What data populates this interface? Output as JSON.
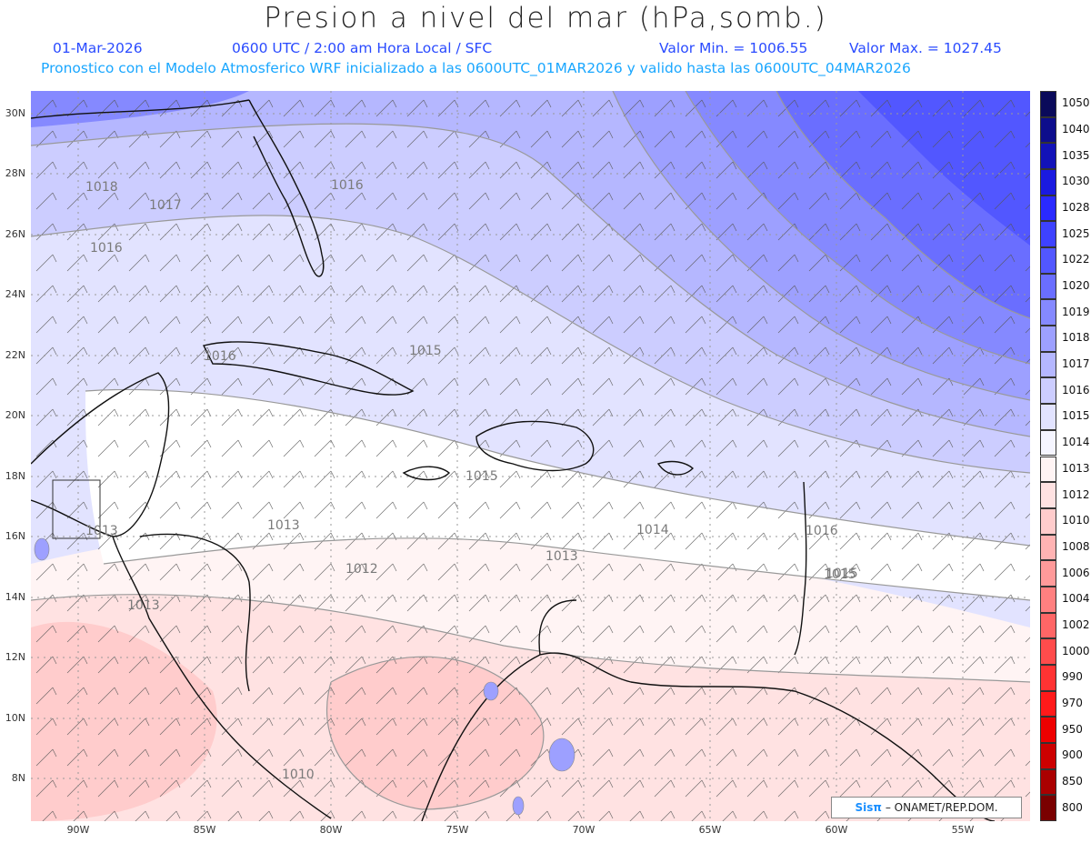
{
  "header": {
    "title": "Presion a nivel del mar (hPa,somb.)",
    "date": "01-Mar-2026",
    "time": "0600 UTC / 2:00 am Hora Local / SFC",
    "min_value": "Valor Min. = 1006.55",
    "max_value": "Valor Max. = 1027.45",
    "forecast_line": "Pronostico con el Modelo Atmosferico WRF inicializado a las 0600UTC_01MAR2026 y valido hasta las  0600UTC_04MAR2026"
  },
  "map": {
    "lat_ticks": [
      "30N",
      "28N",
      "26N",
      "24N",
      "22N",
      "20N",
      "18N",
      "16N",
      "14N",
      "12N",
      "10N",
      "8N"
    ],
    "lon_ticks": [
      "90W",
      "85W",
      "80W",
      "75W",
      "70W",
      "65W",
      "60W",
      "55W"
    ],
    "isobar_labels": [
      "1018",
      "1017",
      "1016",
      "1016",
      "1016",
      "1015",
      "1015",
      "1015",
      "1014",
      "1013",
      "1013",
      "1013",
      "1013",
      "1012",
      "1016",
      "1015",
      "1010"
    ],
    "credit_brand": "Sisπ",
    "credit_text": "– ONAMET/REP.DOM."
  },
  "legend": {
    "levels": [
      "1050",
      "1040",
      "1035",
      "1030",
      "1028",
      "1025",
      "1022",
      "1020",
      "1019",
      "1018",
      "1017",
      "1016",
      "1015",
      "1014",
      "1013",
      "1012",
      "1010",
      "1008",
      "1006",
      "1004",
      "1002",
      "1000",
      "990",
      "970",
      "950",
      "900",
      "850",
      "800"
    ],
    "colors": [
      "#0a0a5a",
      "#0d0d8c",
      "#1212b8",
      "#1a1ae0",
      "#2a2aff",
      "#3e42ff",
      "#5257ff",
      "#6a6eff",
      "#8589ff",
      "#9da0ff",
      "#b5b7ff",
      "#cccdff",
      "#e2e3ff",
      "#f5f5ff",
      "#fff4f4",
      "#ffe2e2",
      "#ffcccc",
      "#ffb3b3",
      "#ff9a9a",
      "#ff8080",
      "#ff6666",
      "#ff4c4c",
      "#ff3333",
      "#ff1a1a",
      "#ee0000",
      "#cc0000",
      "#aa0000",
      "#7a0000"
    ]
  },
  "colors": {
    "title": "#222222",
    "info_blue": "#2a4bff",
    "forecast_blue": "#1aa7ff"
  }
}
